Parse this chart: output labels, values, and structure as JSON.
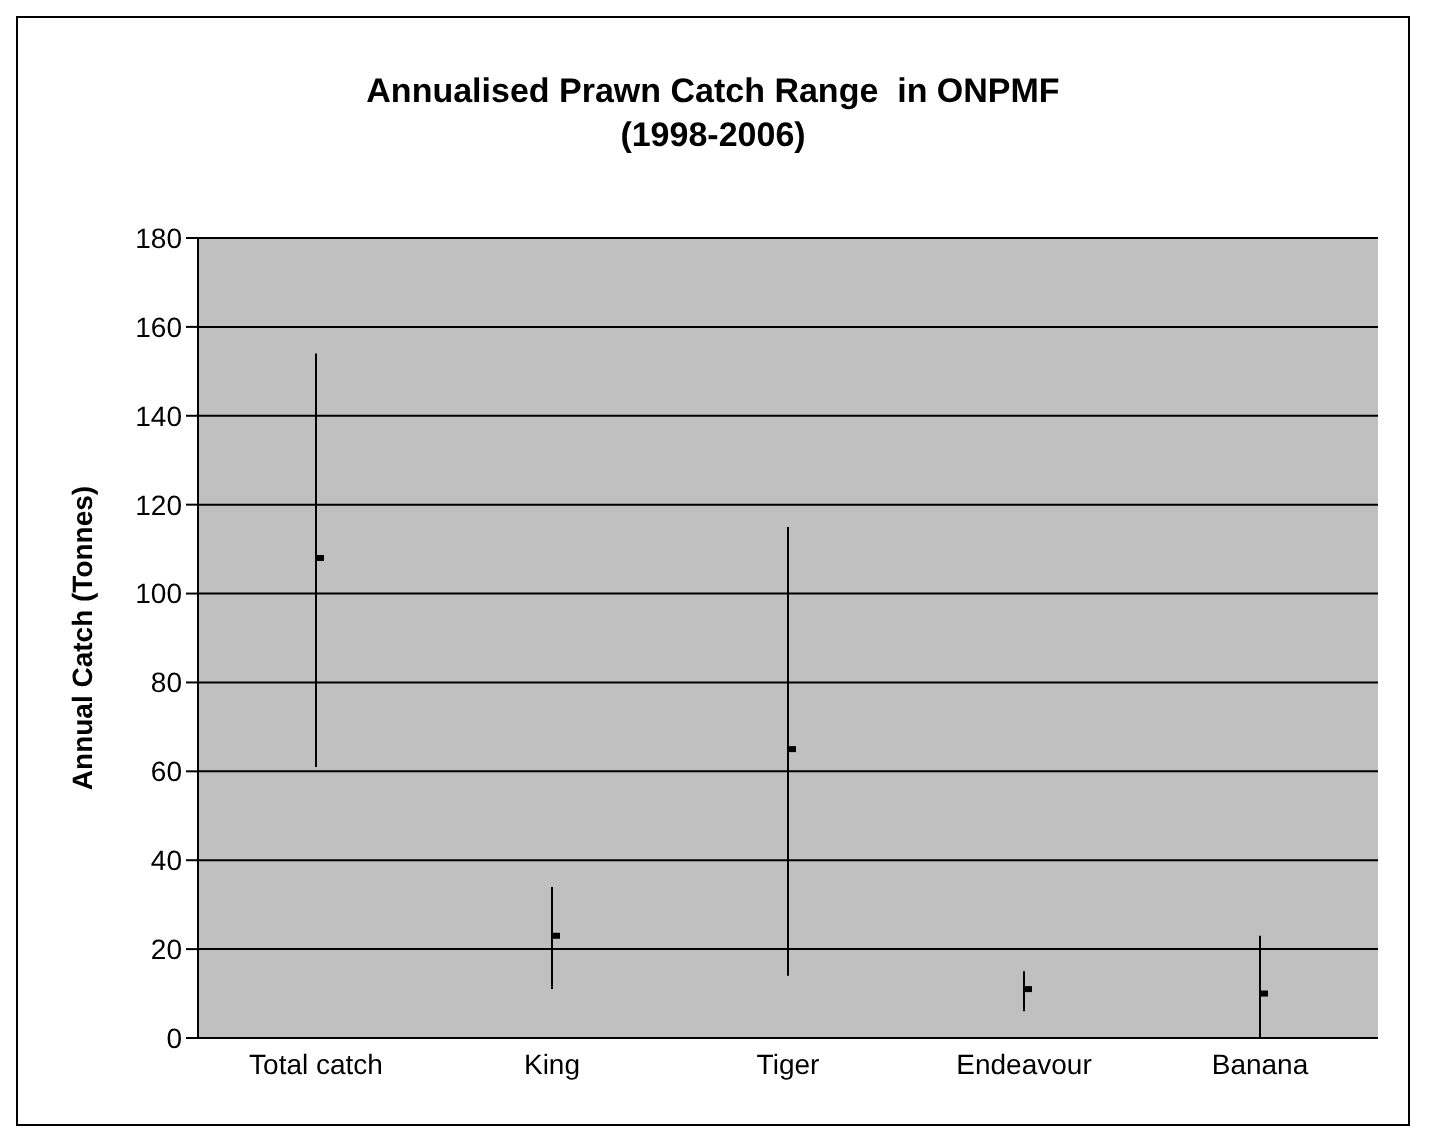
{
  "chart_data": {
    "type": "scatter",
    "title": "Annualised Prawn Catch Range  in ONPMF\n(1998-2006)",
    "ylabel": "Annual Catch (Tonnes)",
    "categories": [
      "Total catch",
      "King",
      "Tiger",
      "Endeavour",
      "Banana"
    ],
    "values": [
      108,
      23,
      65,
      11,
      10
    ],
    "errors": [
      [
        61,
        154
      ],
      [
        11,
        34
      ],
      [
        14,
        115
      ],
      [
        6,
        15
      ],
      [
        0,
        23
      ]
    ],
    "color": "#000000",
    "marker": "square",
    "ylim": [
      0,
      180
    ],
    "yticks": [
      0,
      20,
      40,
      60,
      80,
      100,
      120,
      140,
      160,
      180
    ],
    "grid": "y"
  }
}
